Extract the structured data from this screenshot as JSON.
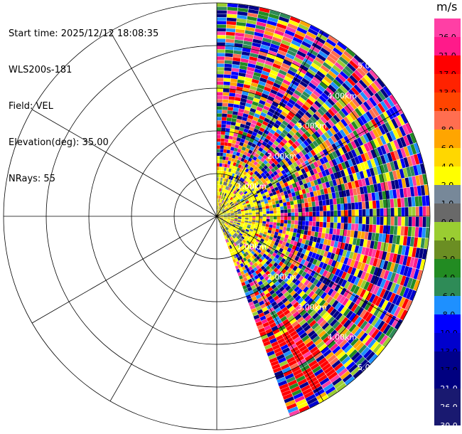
{
  "header": {
    "start_time": "Start time: 2025/12/12 18:08:35",
    "instrument": "WLS200s-181",
    "field": "Field: VEL",
    "elevation": "Elevation(deg): 35.00",
    "nrays": "NRays: 55"
  },
  "colorbar": {
    "unit": "m/s",
    "bins": [
      {
        "label": "26.0",
        "color": "#ff3fa5",
        "text": "#000000"
      },
      {
        "label": "21.0",
        "color": "#ff1a8a",
        "text": "#000000"
      },
      {
        "label": "17.0",
        "color": "#ff0000",
        "text": "#000000"
      },
      {
        "label": "13.0",
        "color": "#ff2200",
        "text": "#000000"
      },
      {
        "label": "10.0",
        "color": "#ff4400",
        "text": "#000000"
      },
      {
        "label": "8.0",
        "color": "#ff6e50",
        "text": "#000000"
      },
      {
        "label": "6.0",
        "color": "#ffa500",
        "text": "#000000"
      },
      {
        "label": "4.0",
        "color": "#ffd700",
        "text": "#000000"
      },
      {
        "label": "2.0",
        "color": "#ffff00",
        "text": "#000000"
      },
      {
        "label": "1.0",
        "color": "#778899",
        "text": "#000000"
      },
      {
        "label": "0.0",
        "color": "#696969",
        "text": "#000000"
      },
      {
        "label": "-1.0",
        "color": "#9acd32",
        "text": "#000000"
      },
      {
        "label": "-2.0",
        "color": "#6b8e23",
        "text": "#000000"
      },
      {
        "label": "-4.0",
        "color": "#228b22",
        "text": "#000000"
      },
      {
        "label": "-6.0",
        "color": "#2e8b57",
        "text": "#000000"
      },
      {
        "label": "-8.0",
        "color": "#1e90ff",
        "text": "#000000"
      },
      {
        "label": "-10.0",
        "color": "#0000ff",
        "text": "#000000"
      },
      {
        "label": "-13.0",
        "color": "#0000cd",
        "text": "#000000"
      },
      {
        "label": "-17.0",
        "color": "#00008b",
        "text": "#000000"
      },
      {
        "label": "-21.0",
        "color": "#000080",
        "text": "#ffffff"
      },
      {
        "label": "-26.0",
        "color": "#191970",
        "text": "#ffffff"
      },
      {
        "label": "-30.0",
        "color": "#191970",
        "text": "#ffffff"
      }
    ]
  },
  "chart_data": {
    "type": "heatmap",
    "description_field": "VEL",
    "range_rings_km": [
      1,
      2,
      3,
      4,
      5
    ],
    "range_labels": [
      "1.00km",
      "2.00km",
      "3.00km",
      "4.00km",
      "5.00km"
    ],
    "azimuth_spokes_deg": [
      0,
      30,
      60,
      90,
      120,
      150,
      180,
      210,
      240,
      270,
      300,
      330
    ],
    "sector_azimuth_deg": [
      0,
      160
    ],
    "max_range_km": 5.0,
    "n_rays": 55,
    "grid": true
  }
}
